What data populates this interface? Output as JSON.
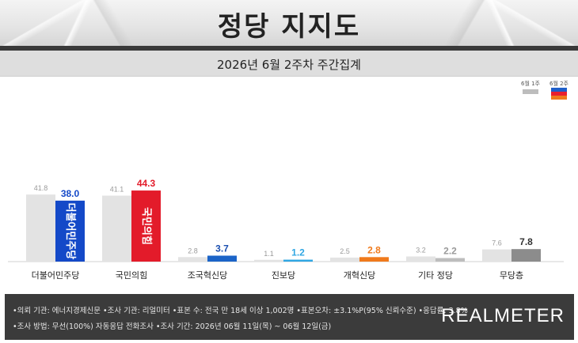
{
  "title": "정당 지지도",
  "subtitle": "2026년 6월 2주차 주간집계",
  "legend": [
    {
      "label": "6월 1주",
      "color": "#bdbdbd"
    },
    {
      "label": "6월 2주",
      "colors": [
        "#1f5fc9",
        "#e8202f",
        "#f07a1c"
      ]
    }
  ],
  "chart_data": {
    "type": "bar",
    "categories": [
      "더불어민주당",
      "국민의힘",
      "조국혁신당",
      "진보당",
      "개혁신당",
      "기타 정당",
      "무당층"
    ],
    "series": [
      {
        "name": "6월 1주",
        "values": [
          41.8,
          41.1,
          2.8,
          1.1,
          2.5,
          3.2,
          7.6
        ],
        "labels": [
          "41.8",
          "41.1",
          "2.8",
          "1.1",
          "2.5",
          "3.2",
          "7.6"
        ]
      },
      {
        "name": "6월 2주",
        "values": [
          38.0,
          44.3,
          3.7,
          1.2,
          2.8,
          2.2,
          7.8
        ],
        "labels": [
          "38.0",
          "44.3",
          "3.7",
          "1.2",
          "2.8",
          "2.2",
          "7.8"
        ]
      }
    ],
    "current_colors": [
      "#1449c8",
      "#e31b2a",
      "#1b64c8",
      "#2fa6e3",
      "#f07a1c",
      "#bdbdbd",
      "#8c8c8c"
    ],
    "current_label_colors": [
      "#1449c8",
      "#e31b2a",
      "#1b4fb0",
      "#2fa6e3",
      "#f07a1c",
      "#9a9a9a",
      "#333333"
    ],
    "previous_color": "#e3e3e3",
    "bar_logos": [
      "더불어민주당",
      "국민의힘"
    ],
    "ylim": [
      0,
      48
    ]
  },
  "footer": {
    "line1": "•의뢰 기관: 에너지경제신문  •조사 기관: 리얼미터  •표본 수: 전국 만 18세 이상 1,002명  •표본오차: ±3.1%P(95% 신뢰수준)  •응답률: 3.8%",
    "line2": "•조사 방법: 무선(100%) 자동응답 전화조사  •조사 기간: 2026년 06월 11일(목) ~ 06월 12일(금)",
    "brand": "REALMETER"
  }
}
